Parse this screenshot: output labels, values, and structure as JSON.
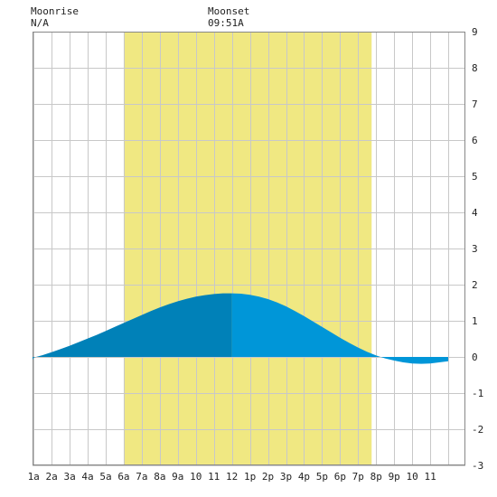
{
  "header": {
    "moonrise_label": "Moonrise",
    "moonrise_value": "N/A",
    "moonset_label": "Moonset",
    "moonset_value": "09:51A"
  },
  "chart_data": {
    "type": "area",
    "title": "",
    "xlabel": "",
    "ylabel": "",
    "xlim": [
      0,
      24
    ],
    "ylim": [
      -3,
      9
    ],
    "grid": true,
    "x_tick_labels": [
      "1a",
      "2a",
      "3a",
      "4a",
      "5a",
      "6a",
      "7a",
      "8a",
      "9a",
      "10",
      "11",
      "12",
      "1p",
      "2p",
      "3p",
      "4p",
      "5p",
      "6p",
      "7p",
      "8p",
      "9p",
      "10",
      "11"
    ],
    "y_tick_labels": [
      "-3",
      "-2",
      "-1",
      "0",
      "1",
      "2",
      "3",
      "4",
      "5",
      "6",
      "7",
      "8",
      "9"
    ],
    "daylight": {
      "start": 6.0,
      "end": 19.75
    },
    "split_x": 12.0,
    "series": [
      {
        "x": [
          0,
          0.5,
          1,
          1.5,
          2,
          2.5,
          3,
          3.5,
          4,
          4.5,
          5,
          5.5,
          6,
          6.5,
          7,
          7.5,
          8,
          8.5,
          9,
          9.5,
          10,
          10.5,
          11,
          11.5,
          12,
          12.5,
          13,
          13.5,
          14,
          14.5,
          15,
          15.5,
          16,
          16.5,
          17,
          17.5,
          18,
          18.5,
          19,
          19.5,
          20,
          20.5,
          21,
          21.5,
          22,
          22.5,
          23,
          23.5,
          24
        ],
        "values": [
          -0.12,
          -0.08,
          -0.02,
          0.05,
          0.13,
          0.22,
          0.31,
          0.41,
          0.51,
          0.61,
          0.72,
          0.83,
          0.94,
          1.05,
          1.16,
          1.27,
          1.37,
          1.46,
          1.54,
          1.61,
          1.67,
          1.71,
          1.74,
          1.76,
          1.76,
          1.75,
          1.72,
          1.67,
          1.6,
          1.51,
          1.4,
          1.27,
          1.13,
          0.98,
          0.83,
          0.68,
          0.53,
          0.39,
          0.26,
          0.14,
          0.04,
          -0.04,
          -0.1,
          -0.15,
          -0.18,
          -0.19,
          -0.18,
          -0.15,
          -0.12
        ]
      }
    ],
    "colors": {
      "daylight": "#f0e882",
      "fill_dark": "#0081b8",
      "fill_light": "#0096d8",
      "grid": "#c8c8c8",
      "frame": "#888888"
    }
  }
}
